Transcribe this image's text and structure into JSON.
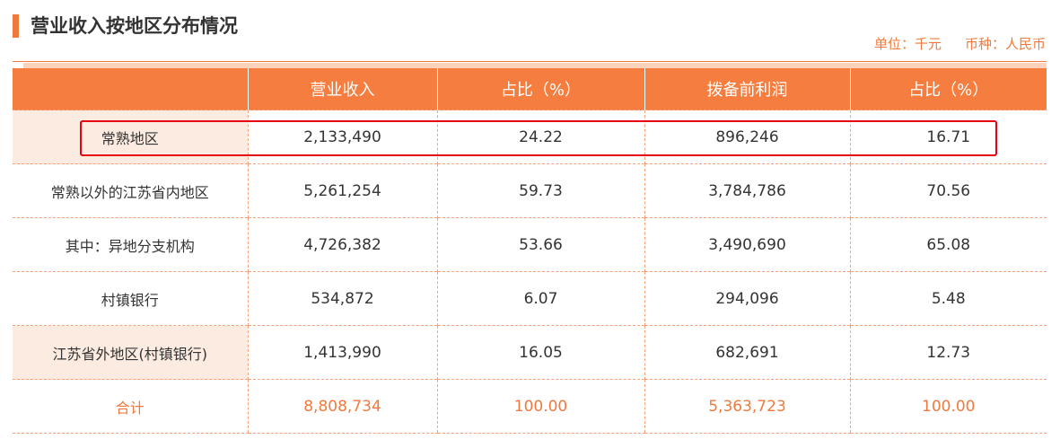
{
  "header": {
    "title": "营业收入按地区分布情况",
    "unit": "单位：千元",
    "currency": "币种：人民币"
  },
  "table": {
    "columns": [
      "",
      "营业收入",
      "占比（%）",
      "拨备前利润",
      "占比（%）"
    ],
    "rows": [
      {
        "region": "常熟地区",
        "revenue": "2,133,490",
        "revenue_pct": "24.22",
        "profit": "896,246",
        "profit_pct": "16.71",
        "tinted": true
      },
      {
        "region": "常熟以外的江苏省内地区",
        "revenue": "5,261,254",
        "revenue_pct": "59.73",
        "profit": "3,784,786",
        "profit_pct": "70.56",
        "tinted": false
      },
      {
        "region": "其中：异地分支机构",
        "revenue": "4,726,382",
        "revenue_pct": "53.66",
        "profit": "3,490,690",
        "profit_pct": "65.08",
        "tinted": false
      },
      {
        "region": "村镇银行",
        "revenue": "534,872",
        "revenue_pct": "6.07",
        "profit": "294,096",
        "profit_pct": "5.48",
        "tinted": false
      },
      {
        "region": "江苏省外地区(村镇银行)",
        "revenue": "1,413,990",
        "revenue_pct": "16.05",
        "profit": "682,691",
        "profit_pct": "12.73",
        "tinted": true
      }
    ],
    "total": {
      "region": "合计",
      "revenue": "8,808,734",
      "revenue_pct": "100.00",
      "profit": "5,363,723",
      "profit_pct": "100.00"
    }
  },
  "colors": {
    "accent": "#f57d3f",
    "highlight_box": "#e60012",
    "tinted_cell": "#fcebe0"
  }
}
